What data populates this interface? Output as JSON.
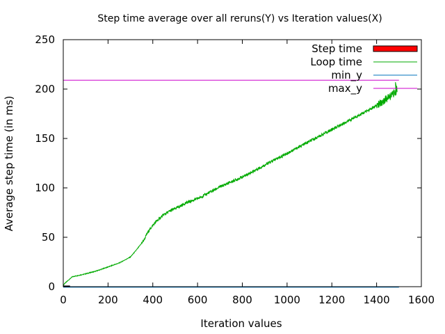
{
  "chart_data": {
    "type": "line",
    "title": "Step time average over all reruns(Y) vs Iteration values(X)",
    "xlabel": "Iteration values",
    "ylabel": "Average step time (in ms)",
    "xlim": [
      0,
      1600
    ],
    "ylim": [
      0,
      250
    ],
    "x_ticks": [
      "0",
      "200",
      "400",
      "600",
      "800",
      "1000",
      "1200",
      "1400",
      "1600"
    ],
    "y_ticks": [
      "0",
      "50",
      "100",
      "150",
      "200",
      "250"
    ],
    "grid": false,
    "legend_position": "top-right",
    "series": [
      {
        "name": "Step time",
        "style": "bar",
        "color": "#ff0000",
        "x": [
          1,
          2,
          5,
          10,
          15,
          20,
          25,
          30
        ],
        "y": [
          0.4,
          0.4,
          0.4,
          0.4,
          0.4,
          0.4,
          0.4,
          0.4
        ]
      },
      {
        "name": "Loop time",
        "style": "line",
        "color": "#00aa00",
        "noise": 1.5,
        "x": [
          0,
          5,
          20,
          40,
          60,
          100,
          150,
          200,
          250,
          300,
          330,
          360,
          380,
          400,
          420,
          450,
          480,
          500,
          550,
          600,
          650,
          700,
          750,
          800,
          850,
          900,
          950,
          1000,
          1050,
          1100,
          1150,
          1200,
          1250,
          1300,
          1350,
          1400,
          1450,
          1480,
          1490
        ],
        "y": [
          1,
          3,
          6,
          10,
          11,
          13,
          16,
          20,
          24,
          30,
          38,
          47,
          56,
          62,
          67,
          73,
          77,
          79,
          85,
          89,
          95,
          101,
          106,
          111,
          117,
          123,
          129,
          135,
          141,
          147,
          153,
          159,
          165,
          171,
          177,
          183,
          191,
          196,
          199
        ]
      },
      {
        "name": "min_y",
        "style": "line",
        "color": "#0072bd",
        "x": [
          0,
          1500
        ],
        "y": [
          -0.5,
          -0.5
        ]
      },
      {
        "name": "max_y",
        "style": "line",
        "color": "#cc00cc",
        "x": [
          0,
          1500
        ],
        "y": [
          209,
          209
        ]
      }
    ]
  }
}
